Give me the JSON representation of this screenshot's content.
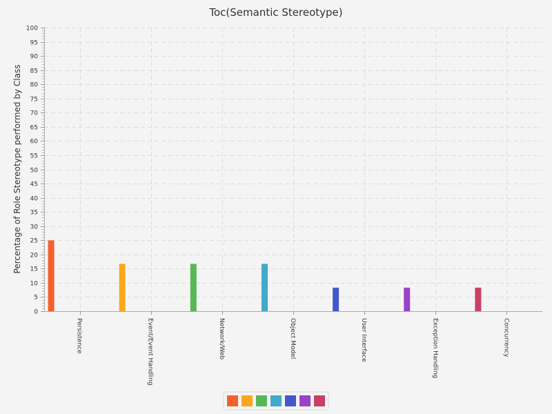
{
  "chart_data": {
    "type": "bar",
    "title": "Toc(Semantic Stereotype)",
    "xlabel": "",
    "ylabel": "Percentage of Role Stereotype performed by Class",
    "ylim": [
      0,
      100
    ],
    "ytick_step": 5,
    "grid": true,
    "legend_position": "bottom",
    "categories": [
      "Persistence",
      "Event/Event Handling",
      "Network/Web",
      "Object Model",
      "User Interface",
      "Exception Handling",
      "Concurrency"
    ],
    "values": [
      25,
      16.7,
      16.7,
      16.7,
      8.3,
      8.3,
      8.3
    ],
    "colors": [
      "#f3622d",
      "#fba71b",
      "#57b757",
      "#41a9c9",
      "#4258c9",
      "#9a42c8",
      "#c84164"
    ]
  }
}
